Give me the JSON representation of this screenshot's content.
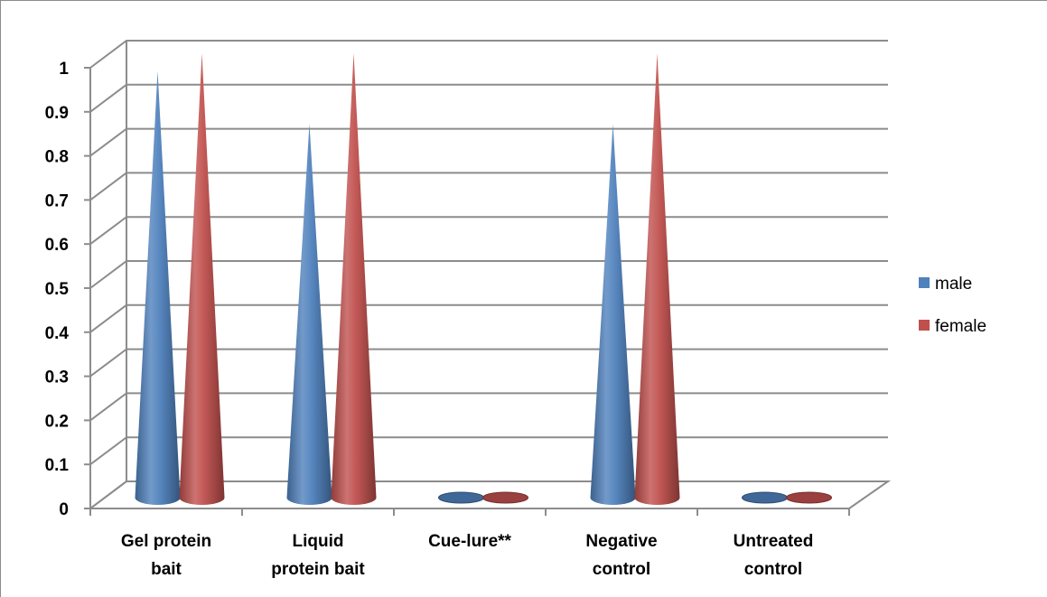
{
  "chart_data": {
    "type": "bar",
    "style": "3d-cone",
    "categories": [
      [
        "Gel protein",
        "bait"
      ],
      [
        "Liquid",
        "protein bait"
      ],
      [
        "Cue-lure**"
      ],
      [
        "Negative",
        "control"
      ],
      [
        "Untreated",
        "control"
      ]
    ],
    "series": [
      {
        "name": "male",
        "color": "#4f81bd",
        "values": [
          0.96,
          0.84,
          0.0,
          0.84,
          0.0
        ]
      },
      {
        "name": "female",
        "color": "#c0504d",
        "values": [
          1.0,
          1.0,
          0.0,
          1.0,
          0.0
        ]
      }
    ],
    "y_ticks": [
      "0",
      "0.1",
      "0.2",
      "0.3",
      "0.4",
      "0.5",
      "0.6",
      "0.7",
      "0.8",
      "0.9",
      "1"
    ],
    "ylim": [
      0,
      1
    ],
    "grid": true,
    "legend_position": "right",
    "title": "",
    "xlabel": "",
    "ylabel": ""
  }
}
